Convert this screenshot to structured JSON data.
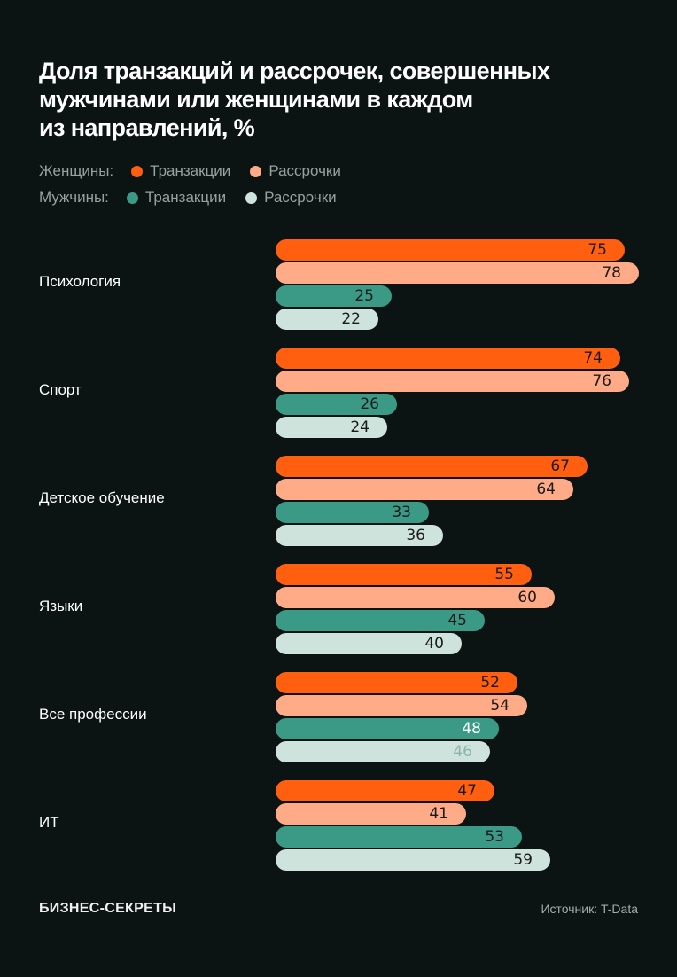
{
  "title_lines": [
    "Доля транзакций и рассрочек, совершенных",
    "мужчинами или женщинами в каждом",
    "из направлений, %"
  ],
  "legend": {
    "women_label": "Женщины:",
    "men_label": "Мужчины:",
    "items": {
      "women_tx": "Транзакции",
      "women_inst": "Рассрочки",
      "men_tx": "Транзакции",
      "men_inst": "Рассрочки"
    }
  },
  "colors": {
    "women_tx": "#ff5f0f",
    "women_inst": "#ffab87",
    "men_tx": "#3a9a86",
    "men_inst": "#cde3dc",
    "background": "#0c1413"
  },
  "footer": {
    "logo": "БИЗНЕС-СЕКРЕТЫ",
    "source": "Источник: T-Data"
  },
  "chart_data": {
    "type": "bar",
    "orientation": "horizontal",
    "title": "Доля транзакций и рассрочек, совершенных мужчинами или женщинами в каждом из направлений, %",
    "categories": [
      "Психология",
      "Спорт",
      "Детское обучение",
      "Языки",
      "Все профессии",
      "ИТ"
    ],
    "series": [
      {
        "name": "Женщины: Транзакции",
        "key": "women_tx",
        "values": [
          75,
          74,
          67,
          55,
          52,
          47
        ]
      },
      {
        "name": "Женщины: Рассрочки",
        "key": "women_inst",
        "values": [
          78,
          76,
          64,
          60,
          54,
          41
        ]
      },
      {
        "name": "Мужчины: Транзакции",
        "key": "men_tx",
        "values": [
          25,
          26,
          33,
          45,
          48,
          53
        ]
      },
      {
        "name": "Мужчины: Рассрочки",
        "key": "men_inst",
        "values": [
          22,
          24,
          36,
          40,
          46,
          59
        ]
      }
    ],
    "xlabel": "",
    "ylabel": "",
    "xlim": [
      0,
      100
    ],
    "grid": false,
    "data_labels": true,
    "legend_position": "top"
  }
}
